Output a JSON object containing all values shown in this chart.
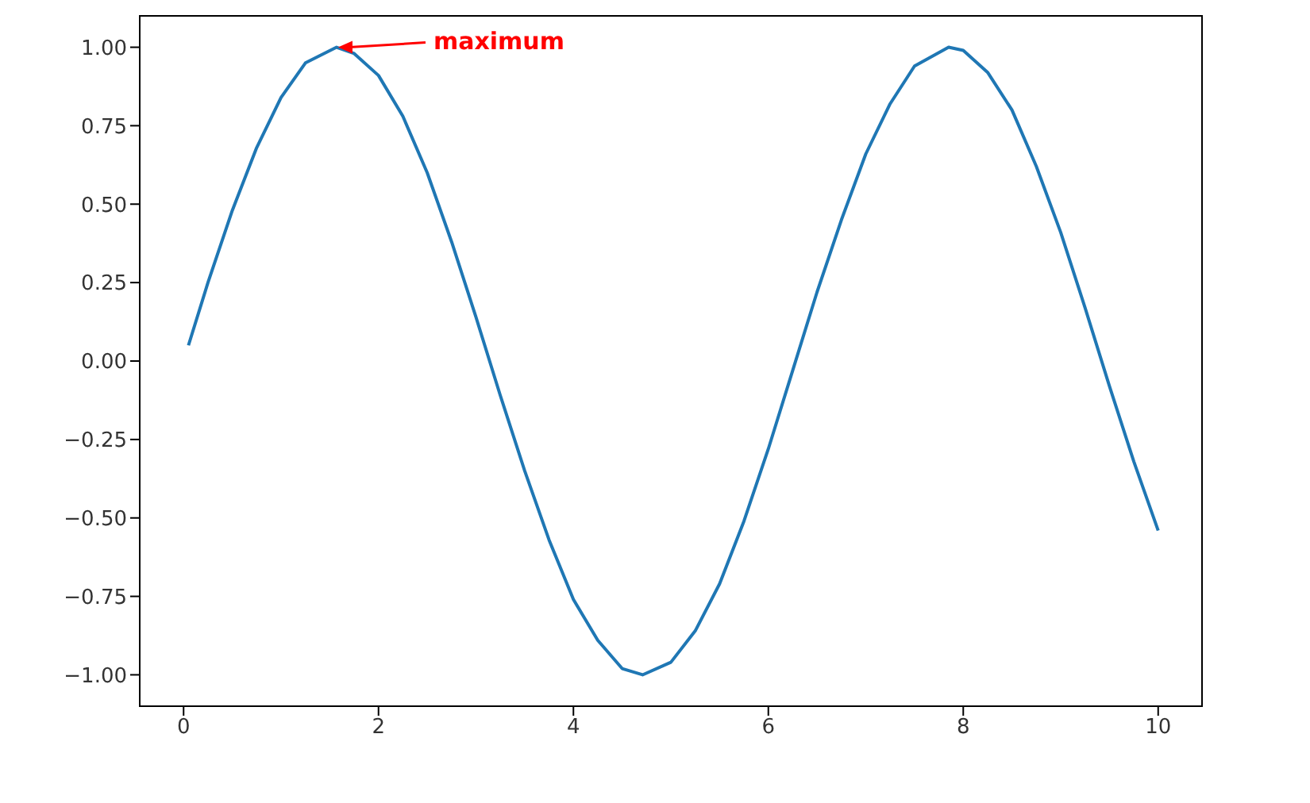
{
  "chart_data": {
    "type": "line",
    "x": [
      0.05,
      0.25,
      0.5,
      0.75,
      1.0,
      1.25,
      1.57,
      1.75,
      2.0,
      2.25,
      2.5,
      2.75,
      3.0,
      3.25,
      3.5,
      3.75,
      4.0,
      4.25,
      4.5,
      4.71,
      5.0,
      5.25,
      5.5,
      5.75,
      6.0,
      6.25,
      6.5,
      6.75,
      7.0,
      7.25,
      7.5,
      7.85,
      8.0,
      8.25,
      8.5,
      8.75,
      9.0,
      9.25,
      9.5,
      9.75,
      10.0
    ],
    "series": [
      {
        "color": "#1f77b4",
        "values": [
          0.05,
          0.25,
          0.48,
          0.68,
          0.84,
          0.95,
          1.0,
          0.98,
          0.91,
          0.78,
          0.6,
          0.38,
          0.14,
          -0.11,
          -0.35,
          -0.57,
          -0.76,
          -0.89,
          -0.98,
          -1.0,
          -0.96,
          -0.86,
          -0.71,
          -0.51,
          -0.28,
          -0.03,
          0.22,
          0.45,
          0.66,
          0.82,
          0.94,
          1.0,
          0.99,
          0.92,
          0.8,
          0.62,
          0.41,
          0.17,
          -0.08,
          -0.32,
          -0.54
        ]
      }
    ],
    "xlim": [
      -0.45,
      10.45
    ],
    "ylim": [
      -1.1,
      1.1
    ],
    "xticks": [
      0,
      2,
      4,
      6,
      8,
      10
    ],
    "yticks": [
      {
        "value": -1,
        "label": "−1.00"
      },
      {
        "value": -0.75,
        "label": "−0.75"
      },
      {
        "value": -0.5,
        "label": "−0.50"
      },
      {
        "value": -0.25,
        "label": "−0.25"
      },
      {
        "value": 0,
        "label": "0.00"
      },
      {
        "value": 0.25,
        "label": "0.25"
      },
      {
        "value": 0.5,
        "label": "0.50"
      },
      {
        "value": 0.75,
        "label": "0.75"
      },
      {
        "value": 1,
        "label": "1.00"
      }
    ],
    "marker": "none",
    "line_style": "solid",
    "annotations": [
      {
        "text": "maximum",
        "x": 1.57,
        "y": 1
      }
    ]
  }
}
